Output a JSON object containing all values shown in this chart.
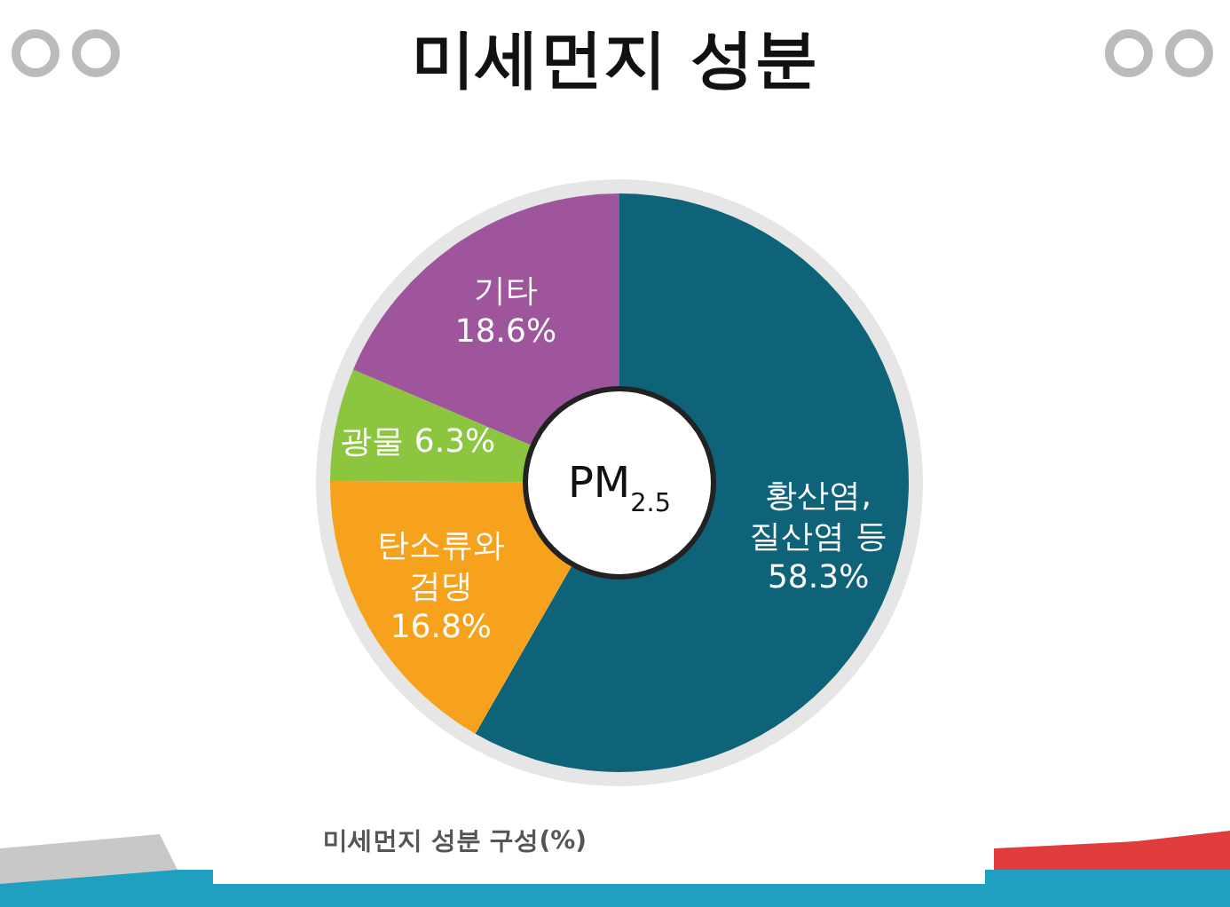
{
  "chart_data": {
    "type": "donut",
    "title": "미세먼지 성분",
    "categories": [
      "황산염, 질산염 등",
      "탄소류와 검댕",
      "광물",
      "기타"
    ],
    "values": [
      58.3,
      16.8,
      6.3,
      18.6
    ],
    "colors": [
      "#0e6378",
      "#f6a21c",
      "#8cc63f",
      "#9f559b"
    ],
    "value_labels": [
      "58.3%",
      "16.8%",
      "6.3%",
      "18.6%"
    ],
    "annotations": [
      "PM$_{2.5}$",
      "미세먼지 성분 구성(%)"
    ]
  }
}
